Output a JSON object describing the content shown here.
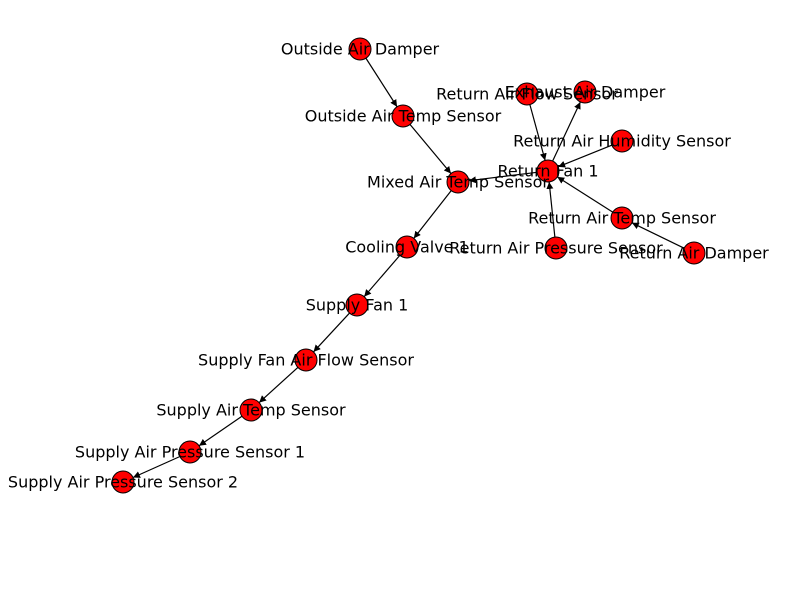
{
  "graph": {
    "node_color": "#ff0000",
    "edge_color": "#000000",
    "nodes": [
      {
        "id": "outside_air_damper",
        "label": "Outside Air Damper"
      },
      {
        "id": "outside_air_temp_sensor",
        "label": "Outside Air Temp Sensor"
      },
      {
        "id": "mixed_air_temp_sensor",
        "label": "Mixed Air Temp Sensor"
      },
      {
        "id": "return_fan_1",
        "label": "Return Fan 1"
      },
      {
        "id": "return_air_flow_sensor",
        "label": "Return Air Flow Sensor"
      },
      {
        "id": "exhaust_air_damper",
        "label": "Exhaust Air Damper"
      },
      {
        "id": "return_air_humidity_sensor",
        "label": "Return Air Humidity Sensor"
      },
      {
        "id": "return_air_temp_sensor",
        "label": "Return Air Temp Sensor"
      },
      {
        "id": "return_air_damper",
        "label": "Return Air Damper"
      },
      {
        "id": "return_air_pressure_sensor",
        "label": "Return Air Pressure Sensor"
      },
      {
        "id": "cooling_valve_1",
        "label": "Cooling Valve 1"
      },
      {
        "id": "supply_fan_1",
        "label": "Supply Fan 1"
      },
      {
        "id": "supply_fan_air_flow_sensor",
        "label": "Supply Fan Air Flow Sensor"
      },
      {
        "id": "supply_air_temp_sensor",
        "label": "Supply Air Temp Sensor"
      },
      {
        "id": "supply_air_pressure_sensor_1",
        "label": "Supply Air Pressure Sensor 1"
      },
      {
        "id": "supply_air_pressure_sensor_2",
        "label": "Supply Air Pressure Sensor 2"
      }
    ],
    "edges": [
      {
        "from": "outside_air_damper",
        "to": "outside_air_temp_sensor"
      },
      {
        "from": "outside_air_temp_sensor",
        "to": "mixed_air_temp_sensor"
      },
      {
        "from": "return_fan_1",
        "to": "mixed_air_temp_sensor"
      },
      {
        "from": "return_air_flow_sensor",
        "to": "return_fan_1"
      },
      {
        "from": "return_fan_1",
        "to": "exhaust_air_damper"
      },
      {
        "from": "return_air_humidity_sensor",
        "to": "return_fan_1"
      },
      {
        "from": "return_air_temp_sensor",
        "to": "return_fan_1"
      },
      {
        "from": "return_air_damper",
        "to": "return_air_temp_sensor"
      },
      {
        "from": "return_air_pressure_sensor",
        "to": "return_fan_1"
      },
      {
        "from": "mixed_air_temp_sensor",
        "to": "cooling_valve_1"
      },
      {
        "from": "cooling_valve_1",
        "to": "supply_fan_1"
      },
      {
        "from": "supply_fan_1",
        "to": "supply_fan_air_flow_sensor"
      },
      {
        "from": "supply_fan_air_flow_sensor",
        "to": "supply_air_temp_sensor"
      },
      {
        "from": "supply_air_temp_sensor",
        "to": "supply_air_pressure_sensor_1"
      },
      {
        "from": "supply_air_pressure_sensor_1",
        "to": "supply_air_pressure_sensor_2"
      }
    ]
  }
}
